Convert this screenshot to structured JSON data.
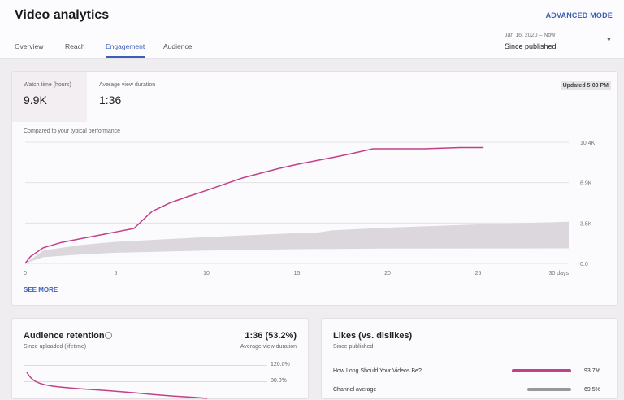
{
  "header": {
    "title": "Video analytics",
    "advanced_mode": "ADVANCED MODE"
  },
  "tabs": [
    {
      "label": "Overview"
    },
    {
      "label": "Reach"
    },
    {
      "label": "Engagement",
      "active": true
    },
    {
      "label": "Audience"
    }
  ],
  "date_range": {
    "range": "Jan 16, 2020 – Now",
    "selected": "Since published"
  },
  "summary": {
    "metrics": [
      {
        "label": "Watch time (hours)",
        "value": "9.9K"
      },
      {
        "label": "Average view duration",
        "value": "1:36"
      }
    ],
    "updated": "Updated 5:00 PM",
    "compare_label": "Compared to your typical performance",
    "see_more": "SEE MORE"
  },
  "chart_data": {
    "type": "line",
    "xlim": [
      0,
      30
    ],
    "ylim": [
      0,
      10400
    ],
    "x_ticks": [
      "0",
      "5",
      "10",
      "15",
      "20",
      "25",
      "30 days"
    ],
    "x_tick_values": [
      0,
      5,
      10,
      15,
      20,
      25,
      30
    ],
    "y_ticks": [
      "0.0",
      "3.5K",
      "6.9K",
      "10.4K"
    ],
    "y_tick_values": [
      0,
      3467,
      6933,
      10400
    ],
    "grid": true,
    "colors": {
      "line": "#c2408a",
      "band": "#dcd7dc"
    },
    "series": [
      {
        "x": [
          0,
          0.3,
          1,
          2,
          3,
          4,
          5,
          6,
          7,
          8,
          9,
          10,
          11,
          12,
          13,
          14,
          15,
          16,
          17,
          18,
          19.2,
          20,
          22,
          24,
          25.3
        ],
        "y": [
          0,
          600,
          1340,
          1800,
          2100,
          2400,
          2700,
          3000,
          4460,
          5200,
          5750,
          6260,
          6800,
          7340,
          7750,
          8150,
          8500,
          8800,
          9100,
          9420,
          9840,
          9840,
          9840,
          9950,
          9950
        ]
      }
    ],
    "typical_band": {
      "x": [
        0,
        1,
        3,
        5,
        10,
        15,
        16,
        17,
        20,
        25,
        30
      ],
      "upper": [
        0,
        1100,
        1570,
        1850,
        2260,
        2600,
        2620,
        2840,
        3070,
        3350,
        3580
      ],
      "lower": [
        0,
        530,
        760,
        920,
        1100,
        1220,
        1230,
        1240,
        1270,
        1280,
        1290
      ]
    }
  },
  "retention": {
    "title": "Audience retention",
    "subtitle": "Since uploaded (lifetime)",
    "value": "1:36 (53.2%)",
    "value_label": "Average view duration",
    "ticks": [
      "120.0%",
      "80.0%"
    ]
  },
  "likes": {
    "title": "Likes (vs. dislikes)",
    "subtitle": "Since published",
    "rows": [
      {
        "label": "How Long Should Your Videos Be?",
        "value": "93.7%",
        "pct": 93.7,
        "color": "#c2408a"
      },
      {
        "label": "Channel average",
        "value": "69.5%",
        "pct": 69.5,
        "color": "#9a979b"
      }
    ]
  }
}
